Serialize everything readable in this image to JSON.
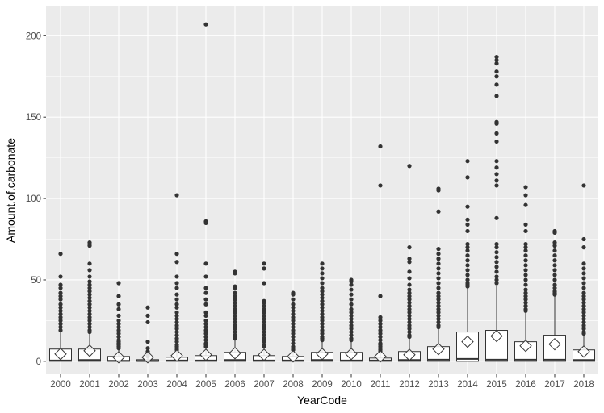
{
  "chart_data": {
    "type": "boxplot",
    "xlabel": "YearCode",
    "ylabel": "Amount.of.carbonate",
    "ylim": [
      -8,
      218
    ],
    "y_ticks": [
      0,
      50,
      100,
      150,
      200
    ],
    "grid": true,
    "categories": [
      "2000",
      "2001",
      "2002",
      "2003",
      "2004",
      "2005",
      "2006",
      "2007",
      "2008",
      "2009",
      "2010",
      "2011",
      "2012",
      "2013",
      "2014",
      "2015",
      "2016",
      "2017",
      "2018"
    ],
    "boxes": [
      {
        "year": "2000",
        "q1": 0,
        "median": 0.5,
        "q3": 7.5,
        "whisker_low": 0,
        "whisker_high": 18,
        "mean": 4.5,
        "outliers": [
          66,
          52,
          47,
          45,
          42,
          40,
          38,
          35,
          33,
          31,
          29,
          27,
          25,
          23,
          21,
          19
        ]
      },
      {
        "year": "2001",
        "q1": 0,
        "median": 0.8,
        "q3": 7.5,
        "whisker_low": 0,
        "whisker_high": 17,
        "mean": 6.5,
        "outliers": [
          73,
          72,
          71,
          60,
          56,
          52,
          49,
          47,
          45,
          43,
          41,
          39,
          37,
          35,
          33,
          31,
          29,
          27,
          25,
          23,
          21,
          19,
          18
        ]
      },
      {
        "year": "2002",
        "q1": 0,
        "median": 0.3,
        "q3": 3,
        "whisker_low": 0,
        "whisker_high": 7,
        "mean": 2.5,
        "outliers": [
          48,
          40,
          35,
          32,
          28,
          25,
          23,
          21,
          19,
          17,
          15,
          13,
          12,
          11,
          10,
          9,
          8
        ]
      },
      {
        "year": "2003",
        "q1": 0,
        "median": 0.2,
        "q3": 1,
        "whisker_low": 0,
        "whisker_high": 2.5,
        "mean": 2.5,
        "outliers": [
          33,
          28,
          24,
          12,
          8,
          6,
          5,
          4,
          3
        ]
      },
      {
        "year": "2004",
        "q1": 0,
        "median": 0.5,
        "q3": 2.5,
        "whisker_low": 0,
        "whisker_high": 6,
        "mean": 3.5,
        "outliers": [
          102,
          66,
          61,
          52,
          48,
          45,
          41,
          38,
          35,
          33,
          30,
          28,
          26,
          24,
          22,
          20,
          18,
          16,
          14,
          12,
          10,
          9,
          8,
          7
        ]
      },
      {
        "year": "2005",
        "q1": 0,
        "median": 0.5,
        "q3": 3.5,
        "whisker_low": 0,
        "whisker_high": 8,
        "mean": 4,
        "outliers": [
          207,
          86,
          85,
          60,
          52,
          45,
          42,
          38,
          35,
          30,
          28,
          25,
          23,
          21,
          19,
          17,
          15,
          13,
          11,
          10,
          9
        ]
      },
      {
        "year": "2006",
        "q1": 0,
        "median": 0.8,
        "q3": 5.5,
        "whisker_low": 0,
        "whisker_high": 13,
        "mean": 5,
        "outliers": [
          55,
          54,
          46,
          45,
          42,
          40,
          38,
          36,
          34,
          32,
          30,
          28,
          26,
          24,
          22,
          20,
          18,
          16,
          15,
          14
        ]
      },
      {
        "year": "2007",
        "q1": 0,
        "median": 0.5,
        "q3": 3.5,
        "whisker_low": 0,
        "whisker_high": 8,
        "mean": 4,
        "outliers": [
          60,
          57,
          48,
          37,
          36,
          34,
          32,
          30,
          28,
          26,
          24,
          22,
          20,
          18,
          16,
          14,
          12,
          10,
          9
        ]
      },
      {
        "year": "2008",
        "q1": 0,
        "median": 0.5,
        "q3": 3,
        "whisker_low": 0,
        "whisker_high": 6,
        "mean": 3,
        "outliers": [
          42,
          41,
          38,
          35,
          33,
          31,
          29,
          27,
          25,
          23,
          21,
          19,
          17,
          15,
          13,
          11,
          9,
          8,
          7
        ]
      },
      {
        "year": "2009",
        "q1": 0,
        "median": 0.8,
        "q3": 5.5,
        "whisker_low": 0,
        "whisker_high": 12,
        "mean": 4.5,
        "outliers": [
          60,
          57,
          54,
          51,
          48,
          45,
          43,
          41,
          39,
          37,
          35,
          33,
          31,
          29,
          27,
          25,
          23,
          21,
          19,
          17,
          15,
          14,
          13
        ]
      },
      {
        "year": "2010",
        "q1": 0,
        "median": 0.5,
        "q3": 5.5,
        "whisker_low": 0,
        "whisker_high": 12,
        "mean": 4.5,
        "outliers": [
          50,
          49,
          47,
          44,
          41,
          38,
          35,
          32,
          30,
          28,
          26,
          24,
          22,
          20,
          18,
          16,
          14,
          13
        ]
      },
      {
        "year": "2011",
        "q1": 0,
        "median": 0.5,
        "q3": 2,
        "whisker_low": 0,
        "whisker_high": 5,
        "mean": 3,
        "outliers": [
          132,
          108,
          40,
          27,
          25,
          23,
          21,
          19,
          17,
          15,
          13,
          11,
          10,
          9,
          8,
          7,
          6
        ]
      },
      {
        "year": "2012",
        "q1": 0,
        "median": 0.8,
        "q3": 6,
        "whisker_low": 0,
        "whisker_high": 14,
        "mean": 4,
        "outliers": [
          120,
          70,
          63,
          61,
          55,
          51,
          47,
          44,
          42,
          40,
          38,
          36,
          34,
          32,
          30,
          28,
          26,
          24,
          22,
          20,
          18,
          16,
          15
        ]
      },
      {
        "year": "2013",
        "q1": 0,
        "median": 1,
        "q3": 9,
        "whisker_low": 0,
        "whisker_high": 20,
        "mean": 7.5,
        "outliers": [
          106,
          105,
          92,
          69,
          66,
          63,
          60,
          57,
          54,
          51,
          48,
          45,
          42,
          40,
          38,
          36,
          34,
          32,
          30,
          28,
          26,
          24,
          22,
          21
        ]
      },
      {
        "year": "2014",
        "q1": 0,
        "median": 1.5,
        "q3": 18,
        "whisker_low": 0,
        "whisker_high": 45,
        "mean": 12,
        "outliers": [
          123,
          113,
          95,
          87,
          84,
          80,
          72,
          70,
          68,
          65,
          62,
          59,
          56,
          53,
          50,
          48,
          47,
          46
        ]
      },
      {
        "year": "2015",
        "q1": 0,
        "median": 1,
        "q3": 19,
        "whisker_low": 0,
        "whisker_high": 46,
        "mean": 15.5,
        "outliers": [
          187,
          185,
          183,
          178,
          175,
          170,
          163,
          147,
          146,
          140,
          135,
          123,
          119,
          115,
          111,
          108,
          88,
          72,
          70,
          67,
          64,
          61,
          58,
          55,
          52,
          50,
          48
        ]
      },
      {
        "year": "2016",
        "q1": 0,
        "median": 1,
        "q3": 12,
        "whisker_low": 0,
        "whisker_high": 30,
        "mean": 9.5,
        "outliers": [
          107,
          102,
          96,
          84,
          80,
          72,
          70,
          68,
          65,
          62,
          59,
          56,
          53,
          50,
          47,
          44,
          42,
          40,
          38,
          36,
          34,
          32,
          31
        ]
      },
      {
        "year": "2017",
        "q1": 0,
        "median": 1,
        "q3": 16,
        "whisker_low": 0,
        "whisker_high": 40,
        "mean": 10.5,
        "outliers": [
          80,
          79,
          73,
          71,
          68,
          65,
          62,
          59,
          56,
          53,
          50,
          47,
          45,
          43,
          42,
          41
        ]
      },
      {
        "year": "2018",
        "q1": 0,
        "median": 0.8,
        "q3": 7,
        "whisker_low": 0,
        "whisker_high": 16,
        "mean": 6,
        "outliers": [
          108,
          75,
          70,
          60,
          57,
          54,
          51,
          48,
          45,
          42,
          40,
          38,
          36,
          34,
          32,
          30,
          28,
          26,
          24,
          22,
          20,
          18,
          17
        ]
      }
    ],
    "colors": {
      "panel_bg": "#ebebeb",
      "grid_major": "#ffffff",
      "box_fill": "#ffffff",
      "box_stroke": "#333333",
      "point": "#333333",
      "mean_marker_fill": "#ffffff"
    }
  }
}
